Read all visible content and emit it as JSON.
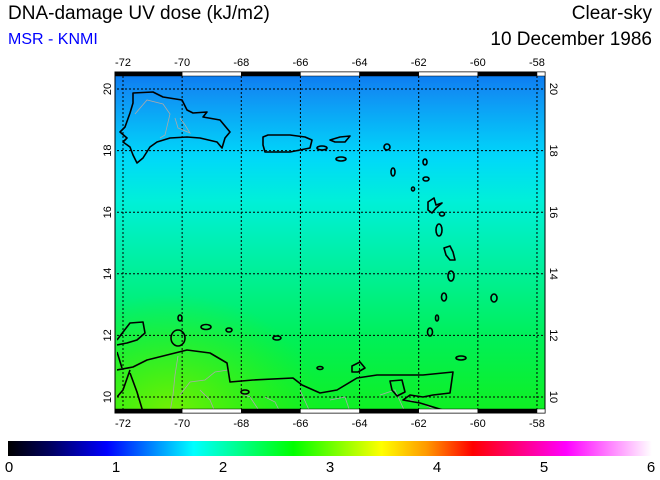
{
  "header": {
    "title": "DNA-damage UV dose (kJ/m2)",
    "subtitle": "MSR - KNMI",
    "condition": "Clear-sky",
    "date": "10 December 1986"
  },
  "map": {
    "region": "Caribbean",
    "lon_ticks": [
      "-72",
      "-70",
      "-68",
      "-66",
      "-64",
      "-62",
      "-60",
      "-58"
    ],
    "lat_ticks": [
      "20",
      "18",
      "16",
      "14",
      "12",
      "10"
    ],
    "lon_values": [
      -72,
      -70,
      -68,
      -66,
      -64,
      -62,
      -60,
      -58
    ],
    "lat_values": [
      20,
      18,
      16,
      14,
      12,
      10
    ]
  },
  "colorbar": {
    "min": 0,
    "max": 6,
    "labels": [
      "0",
      "1",
      "2",
      "3",
      "4",
      "5",
      "6"
    ],
    "stops": [
      {
        "value": 0,
        "color": "#000000"
      },
      {
        "value": 0.4,
        "color": "#000060"
      },
      {
        "value": 0.92,
        "color": "#0000ff"
      },
      {
        "value": 1.73,
        "color": "#00ffff"
      },
      {
        "value": 2.66,
        "color": "#00ff00"
      },
      {
        "value": 3.48,
        "color": "#ffff00"
      },
      {
        "value": 3.9,
        "color": "#ff9900"
      },
      {
        "value": 4.33,
        "color": "#ff0000"
      },
      {
        "value": 5.2,
        "color": "#ff00ff"
      },
      {
        "value": 6,
        "color": "#ffffff"
      }
    ]
  }
}
